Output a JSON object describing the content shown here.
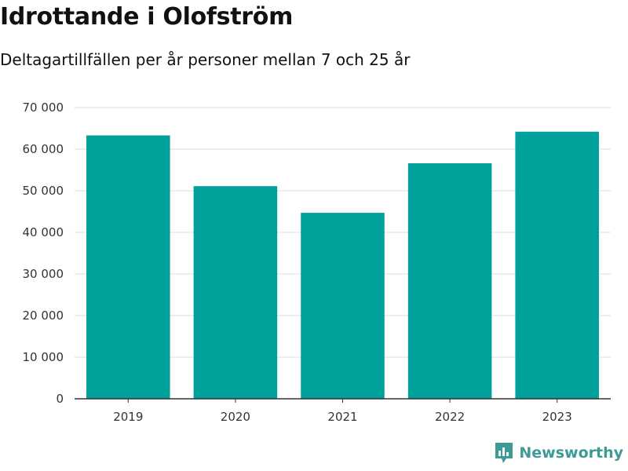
{
  "title": "Idrottande i Olofström",
  "subtitle": "Deltagartillfällen per år personer mellan 7 och 25 år",
  "brand": {
    "name": "Newsworthy",
    "color": "#3d9a95",
    "icon": "bar-chart-bubble-icon"
  },
  "colors": {
    "bar": "#00a19a",
    "grid": "#dddddd",
    "axis": "#333333"
  },
  "chart_data": {
    "type": "bar",
    "categories": [
      "2019",
      "2020",
      "2021",
      "2022",
      "2023"
    ],
    "values": [
      63300,
      51100,
      44700,
      56600,
      64200
    ],
    "ylim": [
      0,
      70000
    ],
    "yticks": [
      0,
      10000,
      20000,
      30000,
      40000,
      50000,
      60000,
      70000
    ],
    "ytick_labels": [
      "0",
      "10 000",
      "20 000",
      "30 000",
      "40 000",
      "50 000",
      "60 000",
      "70 000"
    ],
    "grid": true,
    "legend": "none"
  }
}
